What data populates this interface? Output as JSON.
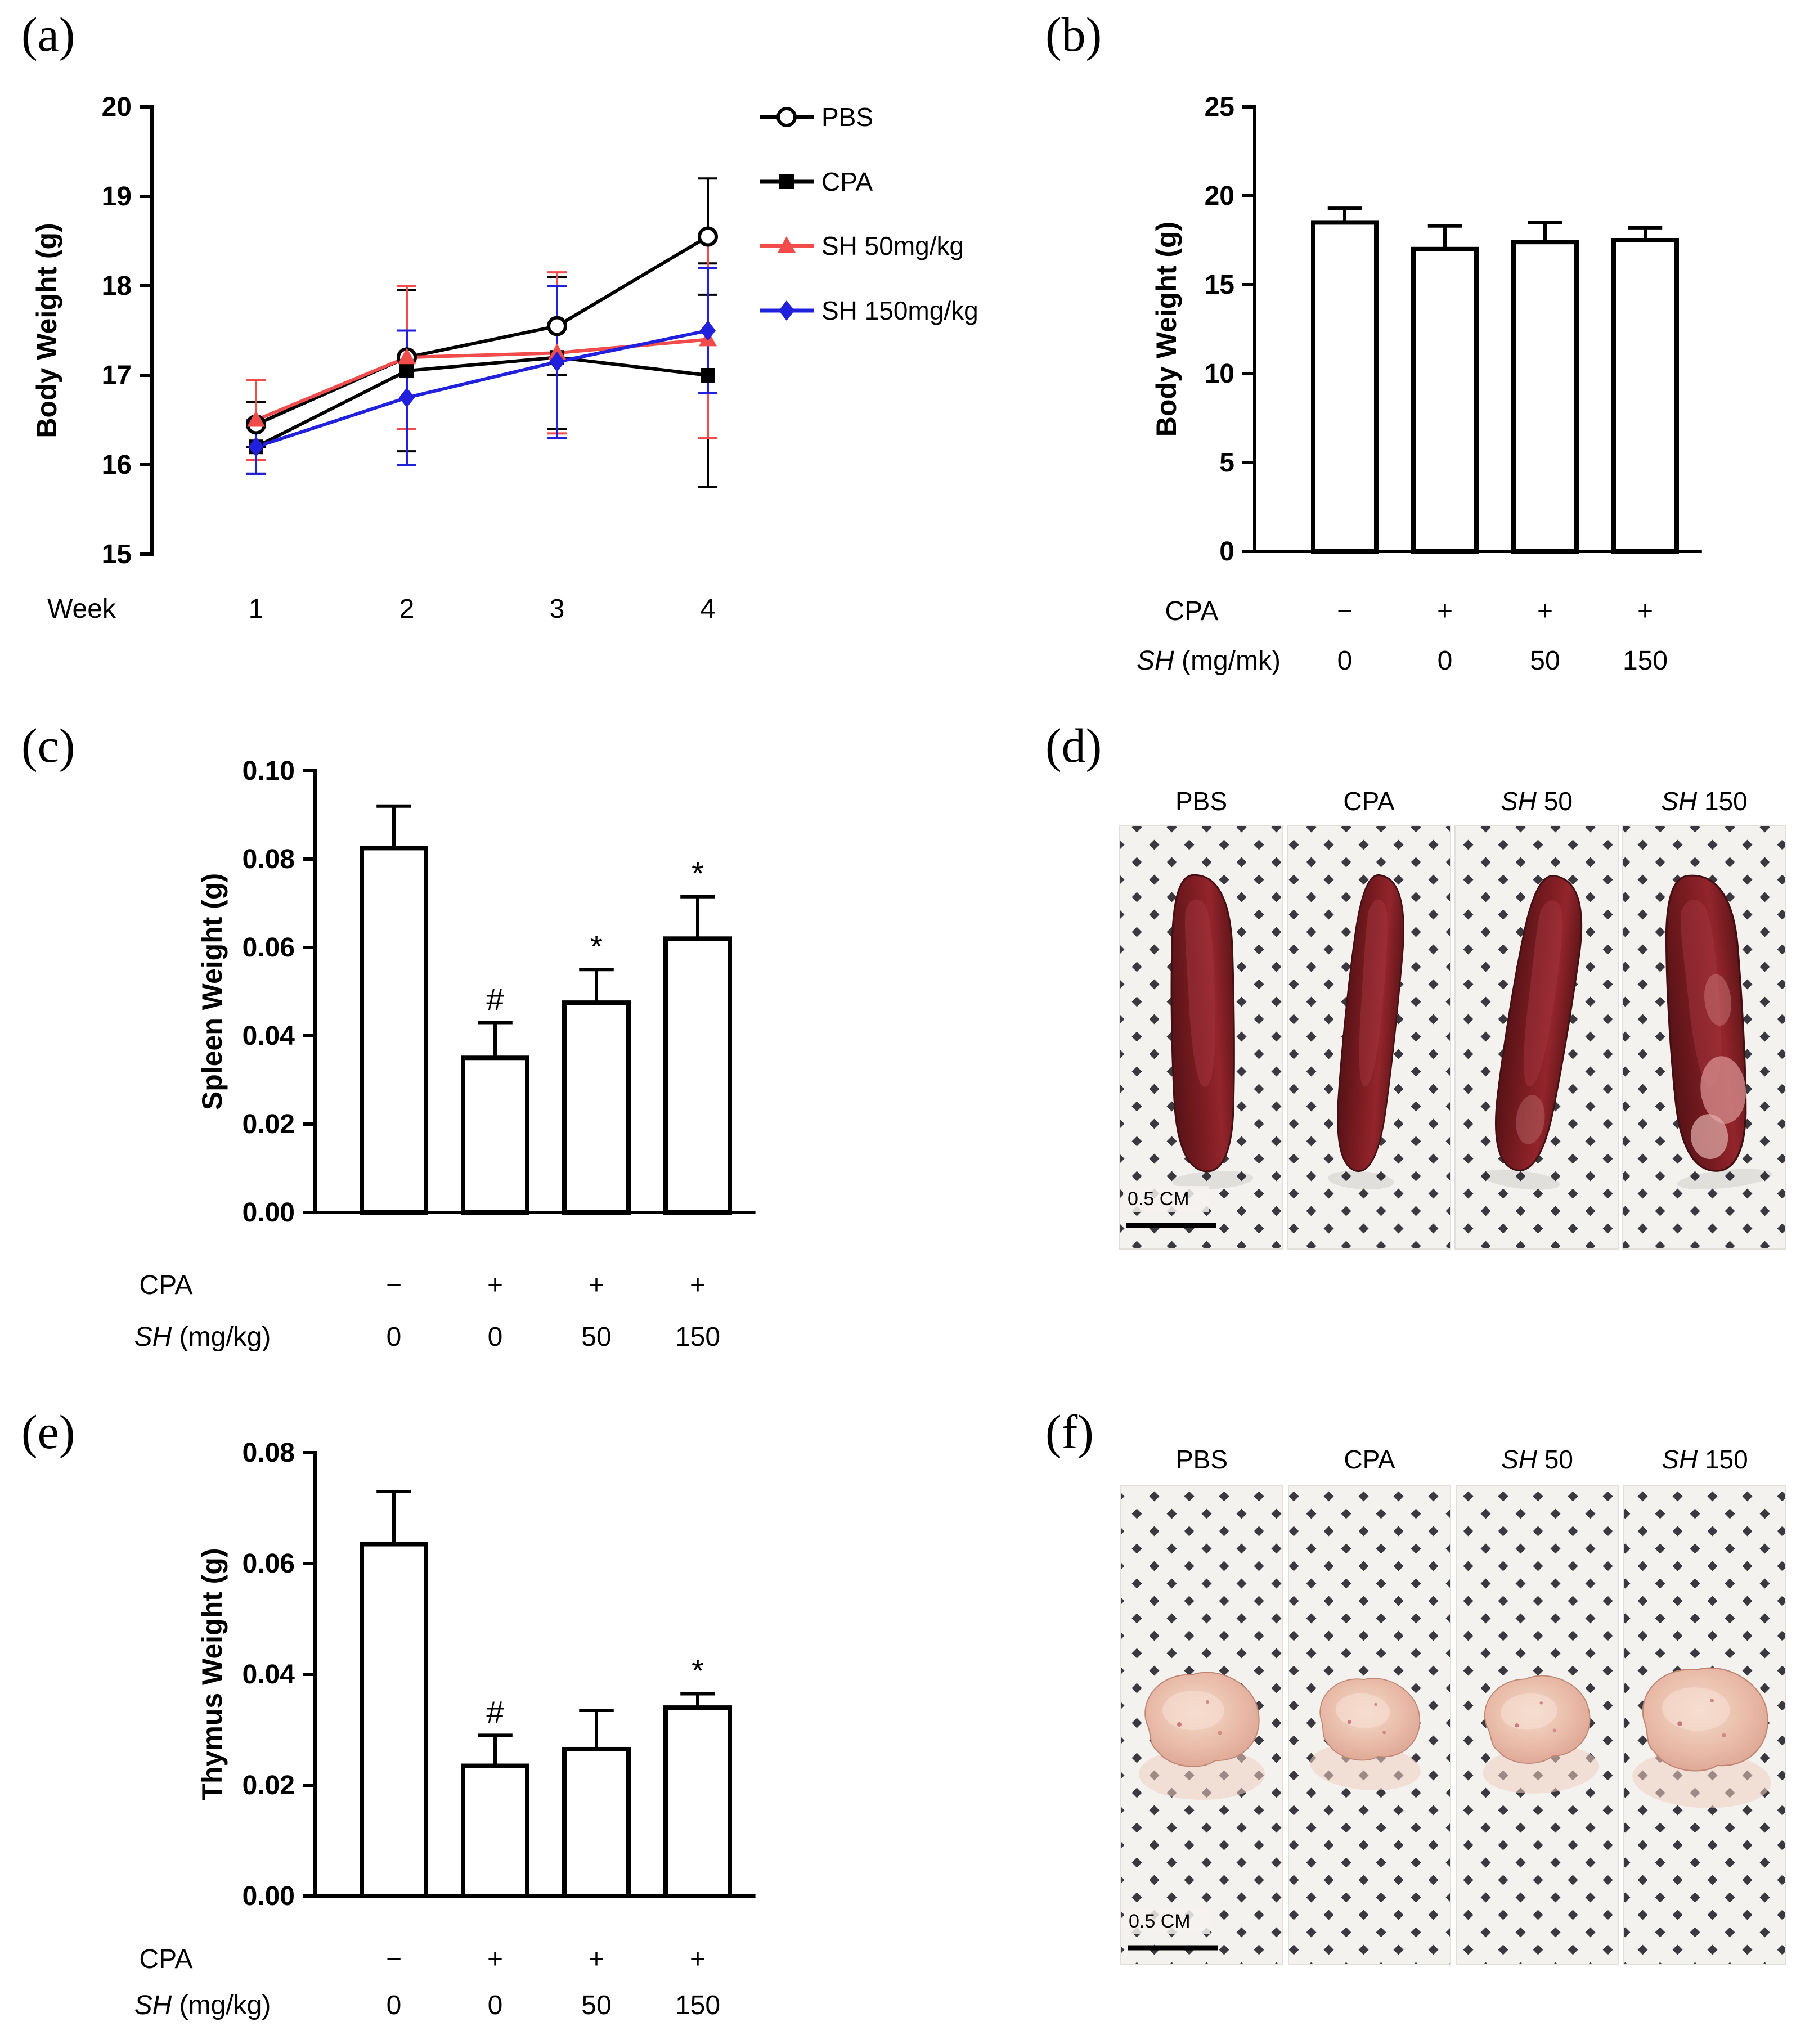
{
  "panel_labels": {
    "a": "(a)",
    "b": "(b)",
    "c": "(c)",
    "d": "(d)",
    "e": "(e)",
    "f": "(f)"
  },
  "chart_data": [
    {
      "id": "a",
      "type": "line",
      "title": "",
      "ylabel": "Body Weight (g)",
      "ylim": [
        15,
        20
      ],
      "yticks": [
        "15",
        "16",
        "17",
        "18",
        "19",
        "20"
      ],
      "x_axis_label": "Week",
      "x": [
        "1",
        "2",
        "3",
        "4"
      ],
      "legend_position": "right-top",
      "grid": false,
      "series": [
        {
          "name": "PBS",
          "marker": "circle-open",
          "color": "#000000",
          "values": [
            16.45,
            17.2,
            17.55,
            18.55
          ],
          "errors": [
            0.25,
            0.8,
            0.55,
            0.65
          ]
        },
        {
          "name": "CPA",
          "marker": "square",
          "color": "#000000",
          "values": [
            16.2,
            17.05,
            17.2,
            17.0
          ],
          "errors": [
            0.3,
            0.9,
            0.8,
            1.25
          ]
        },
        {
          "name": "SH 50mg/kg",
          "marker": "triangle",
          "color": "#F24B4B",
          "values": [
            16.5,
            17.2,
            17.25,
            17.4
          ],
          "errors": [
            0.45,
            0.8,
            0.9,
            1.1
          ]
        },
        {
          "name": "SH 150mg/kg",
          "marker": "diamond",
          "color": "#2020DD",
          "values": [
            16.2,
            16.75,
            17.15,
            17.5
          ],
          "errors": [
            0.3,
            0.75,
            0.85,
            0.7
          ]
        }
      ]
    },
    {
      "id": "b",
      "type": "bar",
      "title": "",
      "ylabel": "Body Weight (g)",
      "ylim": [
        0,
        25
      ],
      "yticks": [
        "0",
        "5",
        "10",
        "15",
        "20",
        "25"
      ],
      "values": [
        18.5,
        17.0,
        17.4,
        17.5
      ],
      "errors": [
        0.8,
        1.3,
        1.1,
        0.7
      ],
      "annotations": [
        "",
        "",
        "",
        ""
      ],
      "x_rows": [
        {
          "parts": [
            {
              "text": "CPA"
            }
          ],
          "values": [
            "−",
            "+",
            "+",
            "+"
          ]
        },
        {
          "parts": [
            {
              "text": "SH",
              "italic": true
            },
            {
              "text": " (mg/mk)"
            }
          ],
          "values": [
            "0",
            "0",
            "50",
            "150"
          ]
        }
      ]
    },
    {
      "id": "c",
      "type": "bar",
      "title": "",
      "ylabel": "Spleen Weight (g)",
      "ylim": [
        0,
        0.1
      ],
      "yticks": [
        "0.00",
        "0.02",
        "0.04",
        "0.06",
        "0.08",
        "0.10"
      ],
      "values": [
        0.0825,
        0.035,
        0.0475,
        0.062
      ],
      "errors": [
        0.0095,
        0.008,
        0.0075,
        0.0095
      ],
      "annotations": [
        "",
        "#",
        "*",
        "*"
      ],
      "x_rows": [
        {
          "parts": [
            {
              "text": "CPA"
            }
          ],
          "values": [
            "−",
            "+",
            "+",
            "+"
          ]
        },
        {
          "parts": [
            {
              "text": "SH",
              "italic": true
            },
            {
              "text": " (mg/kg)"
            }
          ],
          "values": [
            "0",
            "0",
            "50",
            "150"
          ]
        }
      ]
    },
    {
      "id": "e",
      "type": "bar",
      "title": "",
      "ylabel": "Thymus Weight (g)",
      "ylim": [
        0,
        0.08
      ],
      "yticks": [
        "0.00",
        "0.02",
        "0.04",
        "0.06",
        "0.08"
      ],
      "values": [
        0.0635,
        0.0235,
        0.0265,
        0.034
      ],
      "errors": [
        0.0095,
        0.0055,
        0.007,
        0.0025
      ],
      "annotations": [
        "",
        "#",
        "",
        "*"
      ],
      "x_rows": [
        {
          "parts": [
            {
              "text": "CPA"
            }
          ],
          "values": [
            "−",
            "+",
            "+",
            "+"
          ]
        },
        {
          "parts": [
            {
              "text": "SH",
              "italic": true
            },
            {
              "text": " (mg/kg)"
            }
          ],
          "values": [
            "0",
            "0",
            "50",
            "150"
          ]
        }
      ]
    }
  ],
  "photo_panels": [
    {
      "id": "d",
      "organ": "spleen",
      "labels": [
        [
          {
            "text": "PBS"
          }
        ],
        [
          {
            "text": "CPA"
          }
        ],
        [
          {
            "text": "SH",
            "italic": true
          },
          {
            "text": " 50"
          }
        ],
        [
          {
            "text": "SH",
            "italic": true
          },
          {
            "text": " 150"
          }
        ]
      ],
      "scale_bar_label": "0.5 CM",
      "organ_color": "#7e1d23"
    },
    {
      "id": "f",
      "organ": "thymus",
      "labels": [
        [
          {
            "text": "PBS"
          }
        ],
        [
          {
            "text": "CPA"
          }
        ],
        [
          {
            "text": "SH",
            "italic": true
          },
          {
            "text": " 50"
          }
        ],
        [
          {
            "text": "SH",
            "italic": true
          },
          {
            "text": " 150"
          }
        ]
      ],
      "scale_bar_label": "0.5 CM",
      "organ_color": "#e8b9a6"
    }
  ]
}
